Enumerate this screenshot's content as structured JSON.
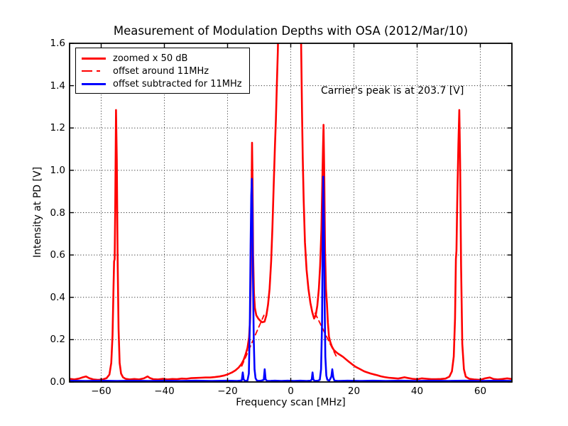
{
  "colors": {
    "red": "#ff0000",
    "blue": "#0000ff",
    "frame": "#000000",
    "grid": "#333333",
    "background": "#ffffff"
  },
  "chart_data": {
    "type": "line",
    "title": "Measurement of Modulation Depths with OSA (2012/Mar/10)",
    "xlabel": "Frequency scan [MHz]",
    "ylabel": "Intensity at PD [V]",
    "xlim": [
      -70,
      70
    ],
    "ylim": [
      0.0,
      1.6
    ],
    "xticks": [
      -60,
      -40,
      -20,
      0,
      20,
      40,
      60
    ],
    "xtick_labels": [
      "−60",
      "−40",
      "−20",
      "0",
      "20",
      "40",
      "60"
    ],
    "yticks": [
      0.0,
      0.2,
      0.4,
      0.6,
      0.8,
      1.0,
      1.2,
      1.4,
      1.6
    ],
    "ytick_labels": [
      "0.0",
      "0.2",
      "0.4",
      "0.6",
      "0.8",
      "1.0",
      "1.2",
      "1.4",
      "1.6"
    ],
    "grid": {
      "visible": true,
      "style": "dotted"
    },
    "annotation": {
      "text": "Carrier's peak is at 203.7 [V]",
      "x": 14,
      "y": 1.36
    },
    "legend": {
      "position": "upper-left",
      "entries": [
        {
          "label": "zoomed x 50 dB",
          "color": "#ff0000",
          "linestyle": "solid"
        },
        {
          "label": "offset around 11MHz",
          "color": "#ff0000",
          "linestyle": "dashed"
        },
        {
          "label": "offset subtracted for 11MHz",
          "color": "#0000ff",
          "linestyle": "solid"
        }
      ]
    },
    "series": [
      {
        "name": "zoomed x 50 dB",
        "color": "#ff0000",
        "linestyle": "solid",
        "linewidth": 2.6,
        "points": [
          [
            -70,
            0.015
          ],
          [
            -68.5,
            0.012
          ],
          [
            -67,
            0.016
          ],
          [
            -65.8,
            0.022
          ],
          [
            -64.8,
            0.026
          ],
          [
            -63.8,
            0.018
          ],
          [
            -62.5,
            0.012
          ],
          [
            -61,
            0.01
          ],
          [
            -59.5,
            0.012
          ],
          [
            -58.3,
            0.018
          ],
          [
            -57.4,
            0.035
          ],
          [
            -56.8,
            0.09
          ],
          [
            -56.4,
            0.22
          ],
          [
            -56.1,
            0.45
          ],
          [
            -55.9,
            0.57
          ],
          [
            -55.72,
            0.58
          ],
          [
            -55.55,
            0.82
          ],
          [
            -55.3,
            1.285
          ],
          [
            -55.05,
            1.05
          ],
          [
            -54.8,
            0.6
          ],
          [
            -54.5,
            0.25
          ],
          [
            -54.15,
            0.09
          ],
          [
            -53.7,
            0.04
          ],
          [
            -53.1,
            0.022
          ],
          [
            -52.3,
            0.015
          ],
          [
            -51,
            0.012
          ],
          [
            -49.5,
            0.014
          ],
          [
            -48,
            0.012
          ],
          [
            -46.5,
            0.017
          ],
          [
            -45.3,
            0.026
          ],
          [
            -44.6,
            0.019
          ],
          [
            -43.5,
            0.013
          ],
          [
            -42,
            0.012
          ],
          [
            -40.5,
            0.015
          ],
          [
            -39,
            0.012
          ],
          [
            -37.5,
            0.014
          ],
          [
            -36,
            0.013
          ],
          [
            -34.5,
            0.016
          ],
          [
            -33,
            0.015
          ],
          [
            -31.5,
            0.018
          ],
          [
            -30,
            0.019
          ],
          [
            -28.5,
            0.02
          ],
          [
            -27,
            0.021
          ],
          [
            -25.5,
            0.021
          ],
          [
            -24,
            0.023
          ],
          [
            -22.5,
            0.026
          ],
          [
            -21,
            0.031
          ],
          [
            -19.8,
            0.037
          ],
          [
            -18.6,
            0.045
          ],
          [
            -17.5,
            0.055
          ],
          [
            -16.5,
            0.068
          ],
          [
            -15.6,
            0.085
          ],
          [
            -14.9,
            0.105
          ],
          [
            -14.3,
            0.13
          ],
          [
            -13.7,
            0.16
          ],
          [
            -13.2,
            0.21
          ],
          [
            -12.85,
            0.3
          ],
          [
            -12.6,
            0.52
          ],
          [
            -12.4,
            0.9
          ],
          [
            -12.25,
            1.13
          ],
          [
            -12.1,
            0.95
          ],
          [
            -11.9,
            0.6
          ],
          [
            -11.65,
            0.42
          ],
          [
            -11.35,
            0.35
          ],
          [
            -10.9,
            0.315
          ],
          [
            -10.3,
            0.3
          ],
          [
            -9.7,
            0.29
          ],
          [
            -9.0,
            0.282
          ],
          [
            -8.3,
            0.285
          ],
          [
            -7.7,
            0.315
          ],
          [
            -7.2,
            0.365
          ],
          [
            -6.7,
            0.44
          ],
          [
            -6.2,
            0.57
          ],
          [
            -5.8,
            0.73
          ],
          [
            -5.4,
            0.93
          ],
          [
            -5.0,
            1.12
          ],
          [
            -4.7,
            1.24
          ],
          [
            -4.4,
            1.4
          ],
          [
            -4.1,
            1.56
          ],
          [
            -3.92,
            1.7
          ],
          [
            3.18,
            1.7
          ],
          [
            3.38,
            1.5
          ],
          [
            3.58,
            1.27
          ],
          [
            3.8,
            1.06
          ],
          [
            4.1,
            0.86
          ],
          [
            4.5,
            0.66
          ],
          [
            5.0,
            0.53
          ],
          [
            5.6,
            0.44
          ],
          [
            6.2,
            0.375
          ],
          [
            6.8,
            0.33
          ],
          [
            7.4,
            0.3
          ],
          [
            7.9,
            0.315
          ],
          [
            8.4,
            0.36
          ],
          [
            8.9,
            0.44
          ],
          [
            9.3,
            0.55
          ],
          [
            9.7,
            0.72
          ],
          [
            10.0,
            0.95
          ],
          [
            10.2,
            1.1
          ],
          [
            10.38,
            1.215
          ],
          [
            10.6,
            0.98
          ],
          [
            10.85,
            0.62
          ],
          [
            11.15,
            0.44
          ],
          [
            11.45,
            0.37
          ],
          [
            11.75,
            0.28
          ],
          [
            12.1,
            0.215
          ],
          [
            12.5,
            0.19
          ],
          [
            13.0,
            0.168
          ],
          [
            13.6,
            0.152
          ],
          [
            14.3,
            0.142
          ],
          [
            15.0,
            0.134
          ],
          [
            15.8,
            0.126
          ],
          [
            16.6,
            0.118
          ],
          [
            17.4,
            0.108
          ],
          [
            18.2,
            0.098
          ],
          [
            19.0,
            0.089
          ],
          [
            19.8,
            0.079
          ],
          [
            20.6,
            0.071
          ],
          [
            21.5,
            0.064
          ],
          [
            22.4,
            0.057
          ],
          [
            23.3,
            0.05
          ],
          [
            24.3,
            0.045
          ],
          [
            25.3,
            0.04
          ],
          [
            26.3,
            0.036
          ],
          [
            27.4,
            0.032
          ],
          [
            28.5,
            0.027
          ],
          [
            29.7,
            0.023
          ],
          [
            31.0,
            0.02
          ],
          [
            32.5,
            0.018
          ],
          [
            34.0,
            0.016
          ],
          [
            35.0,
            0.019
          ],
          [
            36.0,
            0.022
          ],
          [
            37.0,
            0.019
          ],
          [
            38.5,
            0.015
          ],
          [
            40.0,
            0.013
          ],
          [
            41.5,
            0.017
          ],
          [
            43.0,
            0.015
          ],
          [
            44.5,
            0.013
          ],
          [
            46.0,
            0.013
          ],
          [
            47.5,
            0.014
          ],
          [
            49.0,
            0.016
          ],
          [
            50.2,
            0.025
          ],
          [
            51.0,
            0.05
          ],
          [
            51.6,
            0.12
          ],
          [
            52.0,
            0.3
          ],
          [
            52.28,
            0.58
          ],
          [
            52.45,
            0.62
          ],
          [
            52.7,
            0.85
          ],
          [
            53.05,
            1.12
          ],
          [
            53.35,
            1.285
          ],
          [
            53.6,
            1.05
          ],
          [
            53.9,
            0.55
          ],
          [
            54.3,
            0.18
          ],
          [
            54.8,
            0.06
          ],
          [
            55.4,
            0.025
          ],
          [
            56.5,
            0.015
          ],
          [
            58.0,
            0.012
          ],
          [
            60.0,
            0.01
          ],
          [
            61.5,
            0.017
          ],
          [
            63.0,
            0.021
          ],
          [
            64.2,
            0.014
          ],
          [
            65.5,
            0.012
          ],
          [
            67.0,
            0.014
          ],
          [
            68.5,
            0.017
          ],
          [
            70.0,
            0.014
          ]
        ]
      },
      {
        "name": "offset around 11MHz",
        "color": "#ff0000",
        "linestyle": "dashed",
        "linewidth": 1.8,
        "segments": [
          [
            [
              -15.5,
              0.075
            ],
            [
              -8.5,
              0.315
            ]
          ],
          [
            [
              7.7,
              0.325
            ],
            [
              14.6,
              0.115
            ]
          ]
        ]
      },
      {
        "name": "offset subtracted for 11MHz",
        "color": "#0000ff",
        "linestyle": "solid",
        "linewidth": 2.6,
        "points": [
          [
            -70,
            0.006
          ],
          [
            -65,
            0.005
          ],
          [
            -60,
            0.006
          ],
          [
            -55,
            0.005
          ],
          [
            -50,
            0.006
          ],
          [
            -45,
            0.005
          ],
          [
            -40,
            0.006
          ],
          [
            -35,
            0.005
          ],
          [
            -30,
            0.006
          ],
          [
            -25,
            0.005
          ],
          [
            -20,
            0.006
          ],
          [
            -17,
            0.005
          ],
          [
            -15.5,
            0.007
          ],
          [
            -15.2,
            0.045
          ],
          [
            -14.9,
            0.012
          ],
          [
            -14.5,
            0.005
          ],
          [
            -13.7,
            0.006
          ],
          [
            -13.25,
            0.04
          ],
          [
            -12.95,
            0.28
          ],
          [
            -12.7,
            0.65
          ],
          [
            -12.5,
            0.88
          ],
          [
            -12.32,
            0.96
          ],
          [
            -12.15,
            0.82
          ],
          [
            -11.95,
            0.5
          ],
          [
            -11.7,
            0.2
          ],
          [
            -11.45,
            0.06
          ],
          [
            -11.15,
            0.018
          ],
          [
            -10.8,
            0.008
          ],
          [
            -10.3,
            0.005
          ],
          [
            -9.4,
            0.006
          ],
          [
            -8.55,
            0.01
          ],
          [
            -8.25,
            0.06
          ],
          [
            -7.95,
            0.012
          ],
          [
            -7.5,
            0.005
          ],
          [
            -6.5,
            0.005
          ],
          [
            -5.0,
            0.006
          ],
          [
            -3.0,
            0.005
          ],
          [
            -1.0,
            0.006
          ],
          [
            1.0,
            0.005
          ],
          [
            3.0,
            0.006
          ],
          [
            5.0,
            0.005
          ],
          [
            6.3,
            0.006
          ],
          [
            6.65,
            0.012
          ],
          [
            6.9,
            0.045
          ],
          [
            7.15,
            0.012
          ],
          [
            7.55,
            0.005
          ],
          [
            8.6,
            0.006
          ],
          [
            9.2,
            0.01
          ],
          [
            9.6,
            0.06
          ],
          [
            9.9,
            0.28
          ],
          [
            10.1,
            0.65
          ],
          [
            10.3,
            0.97
          ],
          [
            10.5,
            0.78
          ],
          [
            10.72,
            0.38
          ],
          [
            10.95,
            0.12
          ],
          [
            11.25,
            0.03
          ],
          [
            11.6,
            0.01
          ],
          [
            12.2,
            0.006
          ],
          [
            12.85,
            0.025
          ],
          [
            13.15,
            0.06
          ],
          [
            13.45,
            0.022
          ],
          [
            13.85,
            0.006
          ],
          [
            15.0,
            0.005
          ],
          [
            18,
            0.006
          ],
          [
            22,
            0.005
          ],
          [
            26,
            0.006
          ],
          [
            30,
            0.005
          ],
          [
            35,
            0.006
          ],
          [
            40,
            0.005
          ],
          [
            45,
            0.006
          ],
          [
            50,
            0.005
          ],
          [
            55,
            0.006
          ],
          [
            60,
            0.005
          ],
          [
            65,
            0.006
          ],
          [
            70,
            0.005
          ]
        ]
      }
    ]
  }
}
